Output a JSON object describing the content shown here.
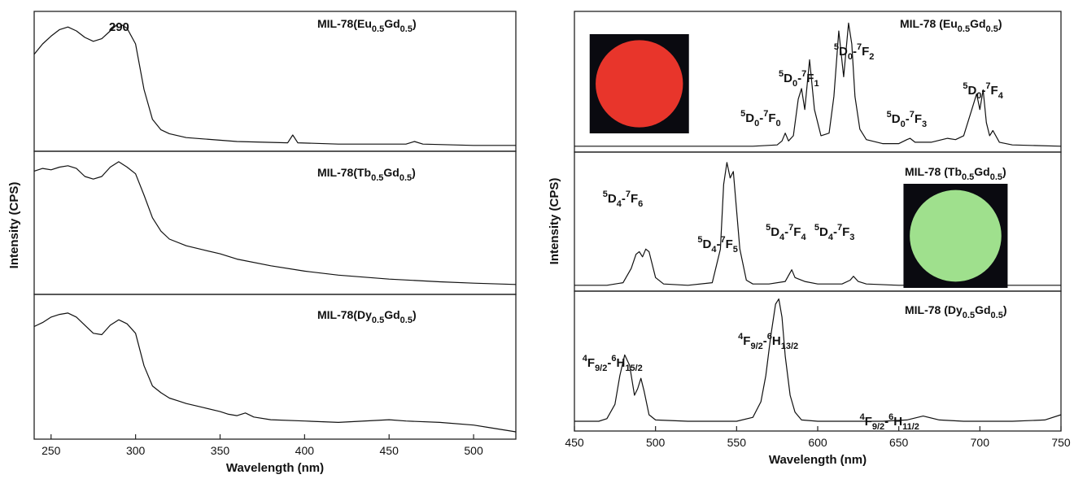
{
  "chart_data": [
    {
      "type": "line",
      "title": "",
      "xlabel": "Wavelength (nm)",
      "ylabel": "Intensity (CPS)",
      "xlim": [
        240,
        525
      ],
      "xticks": [
        250,
        300,
        350,
        400,
        450,
        500
      ],
      "stacked_panels": true,
      "y_ticks_shown": false,
      "grid": false,
      "panels": [
        {
          "label_base": "MIL-78(Eu",
          "label_sub1": "0.5",
          "label_mid": "Gd",
          "label_sub2": "0.5",
          "label_end": ")",
          "annotations": [
            {
              "text": "290",
              "x": 290
            }
          ],
          "series": [
            {
              "x": [
                240,
                245,
                250,
                255,
                260,
                265,
                270,
                275,
                280,
                285,
                290,
                295,
                300,
                305,
                310,
                315,
                320,
                330,
                340,
                360,
                390,
                393,
                396,
                420,
                460,
                465,
                470,
                500,
                525
              ],
              "y": [
                0.72,
                0.8,
                0.86,
                0.91,
                0.93,
                0.9,
                0.85,
                0.82,
                0.84,
                0.9,
                0.96,
                0.92,
                0.8,
                0.45,
                0.22,
                0.14,
                0.11,
                0.08,
                0.07,
                0.05,
                0.04,
                0.1,
                0.04,
                0.03,
                0.03,
                0.05,
                0.03,
                0.02,
                0.02
              ]
            }
          ]
        },
        {
          "label_base": "MIL-78(Tb",
          "label_sub1": "0.5",
          "label_mid": "Gd",
          "label_sub2": "0.5",
          "label_end": ")",
          "annotations": [],
          "series": [
            {
              "x": [
                240,
                245,
                250,
                255,
                260,
                265,
                270,
                275,
                280,
                285,
                290,
                295,
                300,
                305,
                310,
                315,
                320,
                330,
                340,
                350,
                360,
                380,
                400,
                420,
                450,
                480,
                500,
                525
              ],
              "y": [
                0.9,
                0.92,
                0.91,
                0.93,
                0.94,
                0.92,
                0.86,
                0.84,
                0.86,
                0.93,
                0.97,
                0.93,
                0.88,
                0.72,
                0.55,
                0.45,
                0.39,
                0.34,
                0.31,
                0.28,
                0.24,
                0.19,
                0.15,
                0.12,
                0.09,
                0.07,
                0.06,
                0.05
              ]
            }
          ]
        },
        {
          "label_base": "MIL-78(Dy",
          "label_sub1": "0.5",
          "label_mid": "Gd",
          "label_sub2": "0.5",
          "label_end": ")",
          "annotations": [],
          "series": [
            {
              "x": [
                240,
                245,
                250,
                255,
                260,
                265,
                270,
                275,
                280,
                285,
                290,
                295,
                300,
                305,
                310,
                315,
                320,
                325,
                330,
                340,
                350,
                355,
                360,
                365,
                370,
                380,
                400,
                420,
                450,
                460,
                480,
                500,
                510,
                525
              ],
              "y": [
                0.81,
                0.84,
                0.88,
                0.9,
                0.91,
                0.88,
                0.82,
                0.76,
                0.75,
                0.82,
                0.86,
                0.83,
                0.76,
                0.52,
                0.37,
                0.32,
                0.28,
                0.26,
                0.24,
                0.21,
                0.18,
                0.16,
                0.15,
                0.17,
                0.14,
                0.12,
                0.11,
                0.1,
                0.12,
                0.11,
                0.1,
                0.08,
                0.06,
                0.03
              ]
            }
          ]
        }
      ]
    },
    {
      "type": "line",
      "title": "",
      "xlabel": "Wavelength (nm)",
      "ylabel": "Intensity (CPS)",
      "xlim": [
        450,
        750
      ],
      "xticks": [
        450,
        500,
        550,
        600,
        650,
        700,
        750
      ],
      "stacked_panels": true,
      "y_ticks_shown": false,
      "grid": false,
      "panels": [
        {
          "label_base": "MIL-78 (Eu",
          "label_sub1": "0.5",
          "label_mid": "Gd",
          "label_sub2": "0.5",
          "label_end": ")",
          "inset": {
            "color": "#e8352b",
            "x": 490
          },
          "annotations": [
            {
              "sup1": "5",
              "a": "D",
              "s1": "0",
              "sep": "-",
              "sup2": "7",
              "b": "F",
              "s2": "0",
              "x": 580
            },
            {
              "sup1": "5",
              "a": "D",
              "s1": "0",
              "sep": "-",
              "sup2": "7",
              "b": "F",
              "s2": "1",
              "x": 591
            },
            {
              "sup1": "5",
              "a": "D",
              "s1": "0",
              "sep": "-",
              "sup2": "7",
              "b": "F",
              "s2": "2",
              "x": 615
            },
            {
              "sup1": "5",
              "a": "D",
              "s1": "0",
              "sep": "-",
              "sup2": "7",
              "b": "F",
              "s2": "3",
              "x": 655
            },
            {
              "sup1": "5",
              "a": "D",
              "s1": "0",
              "sep": "-",
              "sup2": "7",
              "b": "F",
              "s2": "4",
              "x": 702
            }
          ],
          "series": [
            {
              "x": [
                450,
                500,
                560,
                575,
                578,
                580,
                582,
                585,
                588,
                590,
                592,
                595,
                598,
                602,
                607,
                610,
                613,
                616,
                619,
                621,
                623,
                626,
                630,
                640,
                650,
                655,
                657,
                660,
                670,
                680,
                685,
                690,
                695,
                698,
                700,
                702,
                704,
                706,
                708,
                712,
                720,
                750
              ],
              "y": [
                0.02,
                0.02,
                0.02,
                0.03,
                0.06,
                0.12,
                0.06,
                0.1,
                0.38,
                0.46,
                0.3,
                0.68,
                0.3,
                0.1,
                0.12,
                0.4,
                0.9,
                0.55,
                0.96,
                0.8,
                0.4,
                0.15,
                0.07,
                0.04,
                0.04,
                0.07,
                0.08,
                0.05,
                0.05,
                0.08,
                0.07,
                0.1,
                0.3,
                0.42,
                0.3,
                0.45,
                0.2,
                0.1,
                0.14,
                0.05,
                0.03,
                0.02
              ]
            }
          ]
        },
        {
          "label_base": "MIL-78 (Tb",
          "label_sub1": "0.5",
          "label_mid": "Gd",
          "label_sub2": "0.5",
          "label_end": ")",
          "inset": {
            "color": "#9fe08d",
            "x": 685
          },
          "annotations": [
            {
              "sup1": "5",
              "a": "D",
              "s1": "4",
              "sep": "-",
              "sup2": "7",
              "b": "F",
              "s2": "6",
              "x": 490
            },
            {
              "sup1": "5",
              "a": "D",
              "s1": "4",
              "sep": "-",
              "sup2": "7",
              "b": "F",
              "s2": "5",
              "x": 546
            },
            {
              "sup1": "5",
              "a": "D",
              "s1": "4",
              "sep": "-",
              "sup2": "7",
              "b": "F",
              "s2": "4",
              "x": 588
            },
            {
              "sup1": "5",
              "a": "D",
              "s1": "4",
              "sep": "-",
              "sup2": "7",
              "b": "F",
              "s2": "3",
              "x": 622
            }
          ],
          "series": [
            {
              "x": [
                450,
                470,
                480,
                485,
                488,
                490,
                492,
                494,
                496,
                498,
                500,
                505,
                520,
                535,
                540,
                542,
                544,
                546,
                548,
                550,
                552,
                554,
                556,
                560,
                570,
                580,
                584,
                586,
                588,
                592,
                600,
                615,
                620,
                622,
                625,
                630,
                650,
                700,
                750
              ],
              "y": [
                0.02,
                0.02,
                0.04,
                0.15,
                0.26,
                0.28,
                0.24,
                0.3,
                0.28,
                0.18,
                0.08,
                0.03,
                0.02,
                0.04,
                0.3,
                0.8,
                0.97,
                0.85,
                0.9,
                0.6,
                0.3,
                0.18,
                0.06,
                0.03,
                0.03,
                0.05,
                0.14,
                0.08,
                0.07,
                0.05,
                0.03,
                0.03,
                0.06,
                0.09,
                0.05,
                0.03,
                0.02,
                0.02,
                0.02
              ]
            }
          ]
        },
        {
          "label_base": "MIL-78 (Dy",
          "label_sub1": "0.5",
          "label_mid": "Gd",
          "label_sub2": "0.5",
          "label_end": ")",
          "annotations": [
            {
              "sup1": "4",
              "a": "F",
              "s1": "9/2",
              "sep": "-",
              "sup2": "6",
              "b": "H",
              "s2": "15/2",
              "x": 484
            },
            {
              "sup1": "4",
              "a": "F",
              "s1": "9/2",
              "sep": "-",
              "sup2": "6",
              "b": "H",
              "s2": "13/2",
              "x": 576
            },
            {
              "sup1": "4",
              "a": "F",
              "s1": "9/2",
              "sep": "-",
              "sup2": "6",
              "b": "H",
              "s2": "11/2",
              "x": 665
            }
          ],
          "series": [
            {
              "x": [
                450,
                465,
                470,
                475,
                478,
                481,
                484,
                487,
                489,
                491,
                493,
                496,
                500,
                520,
                550,
                560,
                565,
                568,
                571,
                574,
                576,
                578,
                580,
                583,
                586,
                590,
                600,
                640,
                655,
                665,
                675,
                690,
                720,
                740,
                750
              ],
              "y": [
                0.05,
                0.05,
                0.07,
                0.18,
                0.4,
                0.56,
                0.48,
                0.25,
                0.3,
                0.38,
                0.28,
                0.1,
                0.06,
                0.05,
                0.05,
                0.08,
                0.2,
                0.4,
                0.7,
                0.95,
                0.99,
                0.85,
                0.55,
                0.25,
                0.12,
                0.06,
                0.05,
                0.05,
                0.06,
                0.09,
                0.06,
                0.05,
                0.05,
                0.06,
                0.1
              ]
            }
          ]
        }
      ]
    }
  ]
}
